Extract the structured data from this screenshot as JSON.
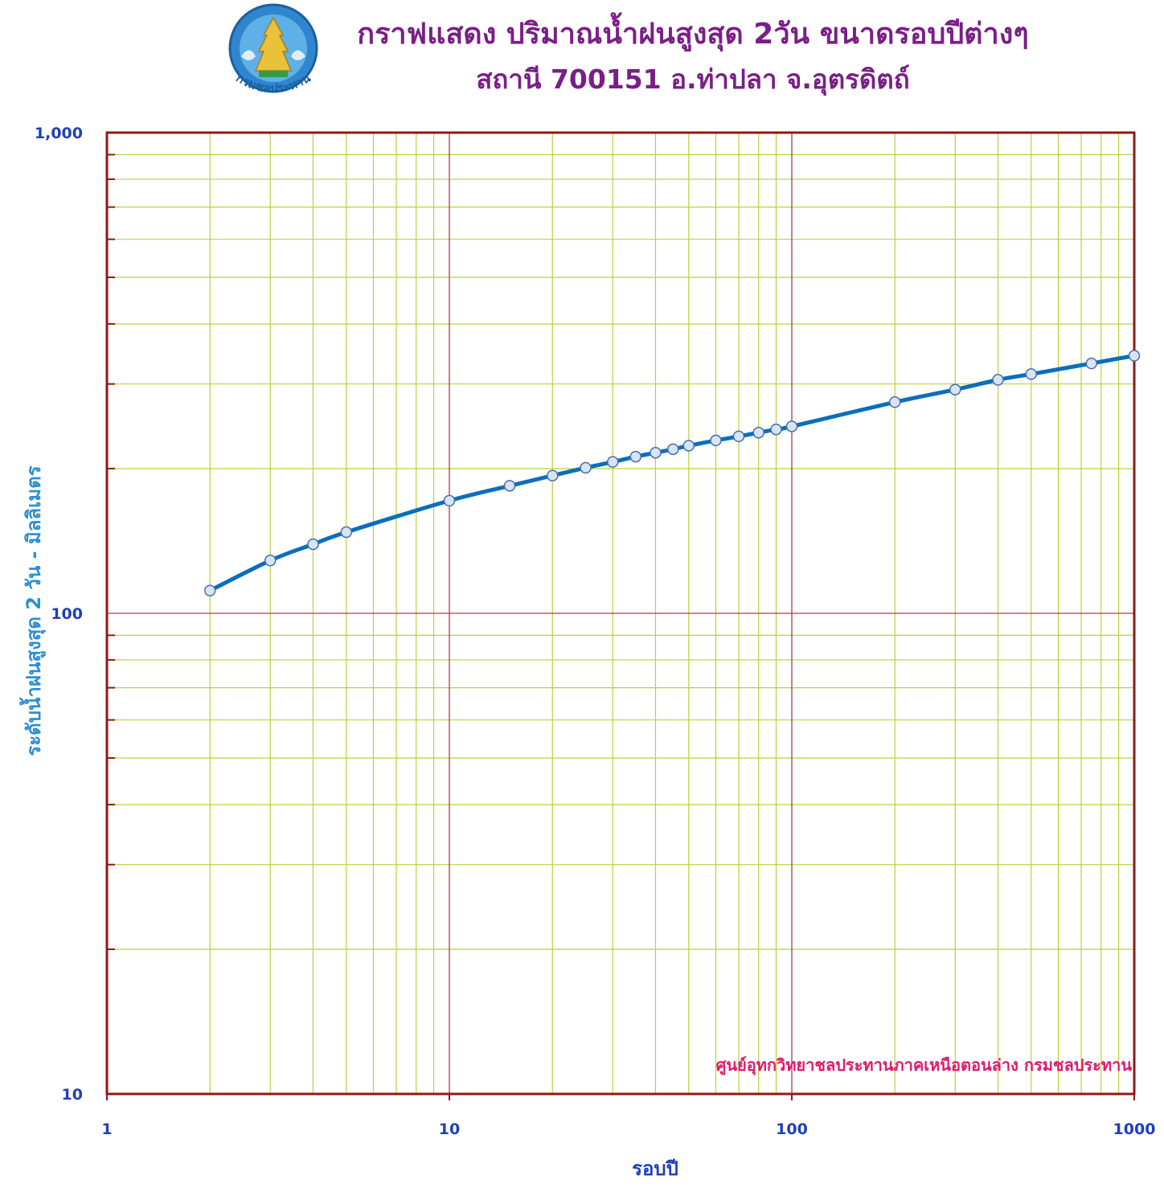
{
  "logo": {
    "caption": "กรมชลประทาน",
    "name": "royal-irrigation-department-seal"
  },
  "colors": {
    "title": "#7a1f87",
    "tick_label": "#1f3fbf",
    "ylabel": "#2e8fd1",
    "xlabel": "#1f3fbf",
    "frame": "#8b1a1a",
    "major_grid": "#b03a4a",
    "minor_grid": "#b8d23a",
    "series_line": "#0a6ebd",
    "marker_fill": "#d6e4f5",
    "marker_stroke": "#4a6ea8",
    "credit": "#e0196b"
  },
  "chart_data": {
    "type": "line",
    "title": "กราฟแสดง ปริมาณน้ำฝนสูงสุด 2วัน ขนาดรอบปีต่างๆ",
    "subtitle": "สถานี  700151    อ.ท่าปลา  จ.อุตรดิตถ์",
    "xlabel": "รอบปี",
    "ylabel": "ระดับน้ำฝนสูงสุด 2 วัน  -  มิลลิเมตร",
    "x_scale": "log",
    "y_scale": "log",
    "xlim": [
      1,
      1000
    ],
    "ylim": [
      10,
      1000
    ],
    "x_tick_labels": [
      "1",
      "10",
      "100",
      "1000"
    ],
    "y_tick_labels": [
      "10",
      "100",
      "1,000"
    ],
    "grid": true,
    "annotation": "ศูนย์อุทกวิทยาชลประทานภาคเหนือตอนล่าง  กรมชลประทาน",
    "series": [
      {
        "x": [
          2,
          3,
          4,
          5,
          10,
          15,
          20,
          25,
          30,
          35,
          40,
          45,
          50,
          60,
          70,
          80,
          90,
          100,
          200,
          300,
          400,
          500,
          750,
          1000
        ],
        "y": [
          111.5,
          128.8,
          139.2,
          147.5,
          171.5,
          184.2,
          193.4,
          200.8,
          206.5,
          211.8,
          215.8,
          219.5,
          223.2,
          228.9,
          233.4,
          237.6,
          241.3,
          244.8,
          275,
          292,
          306,
          314.5,
          331,
          343.5
        ]
      }
    ]
  }
}
